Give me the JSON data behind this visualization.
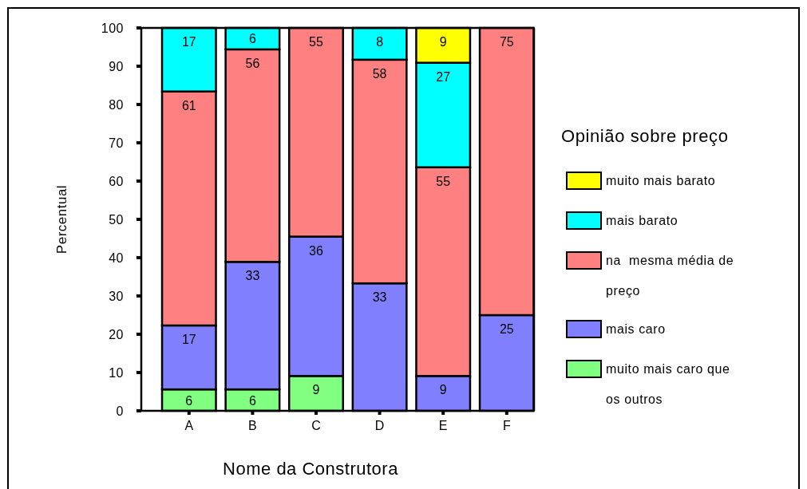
{
  "chart_data": {
    "type": "bar",
    "stacked": true,
    "categories": [
      "A",
      "B",
      "C",
      "D",
      "E",
      "F"
    ],
    "xlabel": "Nome da Construtora",
    "ylabel": "Percentual",
    "legend_title": "Opinião sobre preço",
    "legend": "right",
    "ylim": [
      0,
      100
    ],
    "yticks": [
      0,
      10,
      20,
      30,
      40,
      50,
      60,
      70,
      80,
      90,
      100
    ],
    "series": [
      {
        "name": "muito mais caro que os outros",
        "color": "#80ff80",
        "values": [
          5.6,
          5.6,
          9.1,
          null,
          null,
          null
        ],
        "value_labels": [
          "6",
          "6",
          "9",
          null,
          null,
          null
        ]
      },
      {
        "name": "mais caro",
        "color": "#8080ff",
        "values": [
          16.7,
          33.3,
          36.4,
          33.3,
          9.1,
          25
        ],
        "value_labels": [
          "17",
          "33",
          "36",
          "33",
          "9",
          "25"
        ]
      },
      {
        "name": "na  mesma média de preço",
        "color": "#ff8080",
        "values": [
          61.1,
          55.5,
          54.5,
          58.4,
          54.5,
          75
        ],
        "value_labels": [
          "61",
          "56",
          "55",
          "58",
          "55",
          "75"
        ]
      },
      {
        "name": "mais barato",
        "color": "#00ffff",
        "values": [
          16.6,
          5.6,
          null,
          8.3,
          27.3,
          null
        ],
        "value_labels": [
          "17",
          "6",
          null,
          "8",
          "27",
          null
        ]
      },
      {
        "name": "muito mais barato",
        "color": "#ffff00",
        "values": [
          null,
          null,
          null,
          null,
          9.1,
          null
        ],
        "value_labels": [
          null,
          null,
          null,
          null,
          "9",
          null
        ]
      }
    ]
  }
}
